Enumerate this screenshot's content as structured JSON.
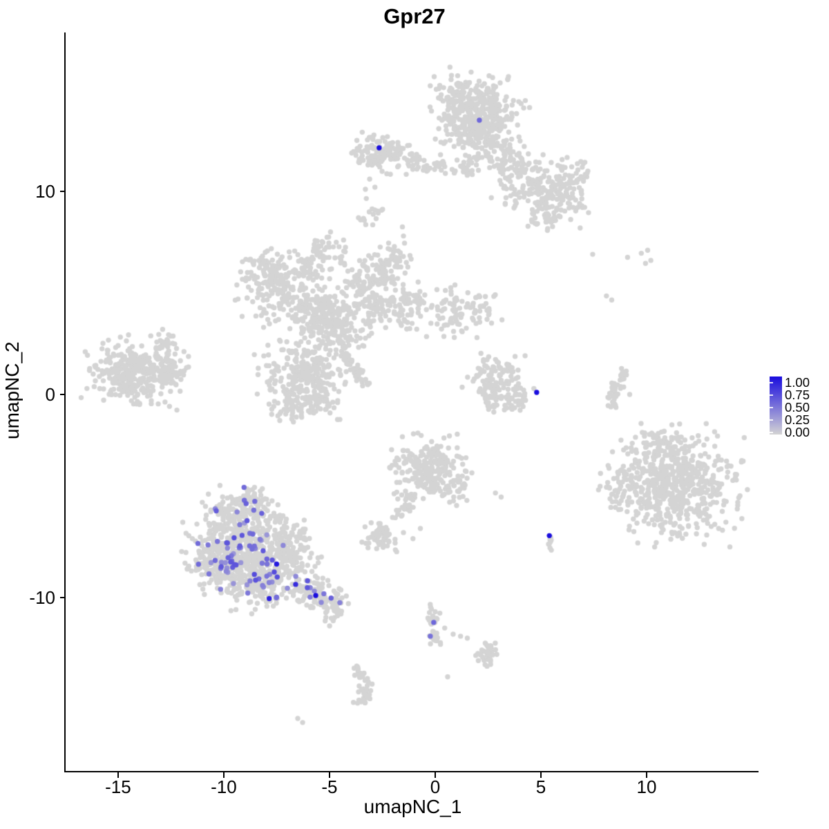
{
  "title": "Gpr27",
  "axes": {
    "x": {
      "label": "umapNC_1",
      "ticks": [
        "-15",
        "-10",
        "-5",
        "0",
        "5",
        "10"
      ],
      "tick_values": [
        -15,
        -10,
        -5,
        0,
        5,
        10
      ]
    },
    "y": {
      "label": "umapNC_2",
      "ticks": [
        "10",
        "0",
        "-10"
      ],
      "tick_values": [
        10,
        0,
        -10
      ]
    }
  },
  "legend": {
    "labels": [
      "1.00",
      "0.75",
      "0.50",
      "0.25",
      "0.00"
    ],
    "low_color": "#D4D4D4",
    "high_color": "#1A0DDE"
  },
  "chart_data": {
    "type": "scatter",
    "title": "Gpr27",
    "xlabel": "umapNC_1",
    "ylabel": "umapNC_2",
    "xlim": [
      -17.48,
      15.36
    ],
    "ylim": [
      -18.57,
      17.82
    ],
    "grid": false,
    "legend_position": "right",
    "point_radius_px": 3.7,
    "colors": {
      "low": "#D4D4D4",
      "high": "#1A0DDE"
    },
    "gray_clusters": [
      {
        "kind": "blob",
        "x": 1.4,
        "y": 14.6,
        "sx": 0.7,
        "sy": 0.6,
        "n": 120
      },
      {
        "kind": "blob",
        "x": 2.6,
        "y": 13.9,
        "sx": 0.8,
        "sy": 0.75,
        "n": 150
      },
      {
        "kind": "blob",
        "x": 1.8,
        "y": 12.9,
        "sx": 0.7,
        "sy": 0.55,
        "n": 100
      },
      {
        "kind": "blob",
        "x": 2.7,
        "y": 12.0,
        "sx": 0.5,
        "sy": 0.5,
        "n": 50
      },
      {
        "kind": "blob",
        "x": 1.6,
        "y": 11.4,
        "sx": 0.45,
        "sy": 0.4,
        "n": 30
      },
      {
        "kind": "blob",
        "x": 0.9,
        "y": 13.6,
        "sx": 0.5,
        "sy": 0.7,
        "n": 60
      },
      {
        "kind": "strand",
        "x1": 3.2,
        "y1": 11.8,
        "x2": 5.0,
        "y2": 10.3,
        "w": 0.5,
        "n": 90
      },
      {
        "kind": "blob",
        "x": 5.7,
        "y": 9.7,
        "sx": 0.75,
        "sy": 0.65,
        "n": 130
      },
      {
        "kind": "blob",
        "x": 6.4,
        "y": 10.7,
        "sx": 0.45,
        "sy": 0.5,
        "n": 45
      },
      {
        "kind": "strand",
        "x1": 4.5,
        "y1": 9.0,
        "x2": 5.7,
        "y2": 8.6,
        "w": 0.3,
        "n": 30
      },
      {
        "kind": "strand",
        "x1": 2.9,
        "y1": 10.5,
        "x2": 4.1,
        "y2": 9.7,
        "w": 0.4,
        "n": 25
      },
      {
        "kind": "blob",
        "x": -2.5,
        "y": 11.9,
        "sx": 0.72,
        "sy": 0.48,
        "n": 130
      },
      {
        "kind": "strand",
        "x1": -1.4,
        "y1": 11.3,
        "x2": 0.5,
        "y2": 11.3,
        "w": 0.22,
        "n": 32
      },
      {
        "kind": "blob",
        "x": -3.0,
        "y": 8.8,
        "sx": 0.3,
        "sy": 0.4,
        "n": 16
      },
      {
        "kind": "blob",
        "x": -7.3,
        "y": 5.3,
        "sx": 0.85,
        "sy": 0.8,
        "n": 190
      },
      {
        "kind": "blob",
        "x": -8.0,
        "y": 6.3,
        "sx": 0.4,
        "sy": 0.4,
        "n": 40
      },
      {
        "kind": "blob",
        "x": -5.2,
        "y": 3.8,
        "sx": 0.95,
        "sy": 0.75,
        "n": 280
      },
      {
        "kind": "strand",
        "x1": -3.8,
        "y1": 5.0,
        "x2": -2.2,
        "y2": 6.3,
        "w": 0.5,
        "n": 110
      },
      {
        "kind": "blob",
        "x": -1.9,
        "y": 6.7,
        "sx": 0.4,
        "sy": 0.4,
        "n": 40
      },
      {
        "kind": "strand",
        "x1": -3.2,
        "y1": 4.2,
        "x2": -0.6,
        "y2": 4.4,
        "w": 0.55,
        "n": 120
      },
      {
        "kind": "blob",
        "x": 1.0,
        "y": 4.0,
        "sx": 0.75,
        "sy": 0.55,
        "n": 90
      },
      {
        "kind": "blob",
        "x": 2.4,
        "y": 4.5,
        "sx": 0.35,
        "sy": 0.35,
        "n": 14
      },
      {
        "kind": "strand",
        "x1": -6.2,
        "y1": 5.9,
        "x2": -5.6,
        "y2": 7.6,
        "w": 0.28,
        "n": 30
      },
      {
        "kind": "blob",
        "x": -5.0,
        "y": 7.0,
        "sx": 0.5,
        "sy": 0.5,
        "n": 32
      },
      {
        "kind": "blob",
        "x": -6.3,
        "y": 0.9,
        "sx": 0.9,
        "sy": 0.85,
        "n": 260
      },
      {
        "kind": "blob",
        "x": -6.9,
        "y": -0.6,
        "sx": 0.5,
        "sy": 0.35,
        "n": 50
      },
      {
        "kind": "blob",
        "x": -5.4,
        "y": -0.4,
        "sx": 0.4,
        "sy": 0.3,
        "n": 40
      },
      {
        "kind": "strand",
        "x1": -4.5,
        "y1": 2.1,
        "x2": -3.2,
        "y2": 0.45,
        "w": 0.12,
        "n": 45
      },
      {
        "kind": "blob",
        "x": -4.5,
        "y": 2.9,
        "sx": 0.5,
        "sy": 0.5,
        "n": 40
      },
      {
        "kind": "blob",
        "x": -14.2,
        "y": 1.1,
        "sx": 1.0,
        "sy": 0.72,
        "n": 320
      },
      {
        "kind": "strand",
        "x1": -13.2,
        "y1": 2.2,
        "x2": -12.5,
        "y2": 3.0,
        "w": 0.25,
        "n": 22
      },
      {
        "kind": "blob",
        "x": -12.55,
        "y": 1.3,
        "sx": 0.42,
        "sy": 0.38,
        "n": 55
      },
      {
        "kind": "blob",
        "x": 3.0,
        "y": 0.6,
        "sx": 0.7,
        "sy": 0.55,
        "n": 95
      },
      {
        "kind": "strand",
        "x1": 2.4,
        "y1": -0.45,
        "x2": 4.3,
        "y2": -0.1,
        "w": 0.28,
        "n": 55
      },
      {
        "kind": "blob",
        "x": 2.6,
        "y": 1.35,
        "sx": 0.3,
        "sy": 0.3,
        "n": 16
      },
      {
        "kind": "strand",
        "x1": 8.42,
        "y1": -0.65,
        "x2": 8.62,
        "y2": 0.35,
        "w": 0.15,
        "n": 22
      },
      {
        "kind": "strand",
        "x1": 8.62,
        "y1": 0.35,
        "x2": 9.0,
        "y2": 1.2,
        "w": 0.15,
        "n": 20
      },
      {
        "kind": "blob",
        "x": 11.4,
        "y": -4.4,
        "sx": 1.35,
        "sy": 1.2,
        "n": 600
      },
      {
        "kind": "blob",
        "x": 8.8,
        "y": -4.6,
        "sx": 0.42,
        "sy": 0.5,
        "n": 45
      },
      {
        "kind": "blob",
        "x": 10.4,
        "y": -2.45,
        "sx": 0.65,
        "sy": 0.4,
        "n": 40
      },
      {
        "kind": "blob",
        "x": -0.3,
        "y": -3.6,
        "sx": 0.85,
        "sy": 0.7,
        "n": 230
      },
      {
        "kind": "strand",
        "x1": -1.2,
        "y1": -4.9,
        "x2": -1.75,
        "y2": -6.25,
        "w": 0.18,
        "n": 26
      },
      {
        "kind": "blob",
        "x": 0.9,
        "y": -4.7,
        "sx": 0.5,
        "sy": 0.4,
        "n": 28
      },
      {
        "kind": "blob",
        "x": -2.55,
        "y": -7.0,
        "sx": 0.4,
        "sy": 0.35,
        "n": 55
      },
      {
        "kind": "blob",
        "x": 5.38,
        "y": -7.3,
        "sx": 0.16,
        "sy": 0.28,
        "n": 10
      },
      {
        "kind": "blob",
        "x": -9.2,
        "y": -5.6,
        "sx": 0.75,
        "sy": 0.45,
        "n": 90
      },
      {
        "kind": "blob",
        "x": -9.3,
        "y": -7.3,
        "sx": 1.05,
        "sy": 0.9,
        "n": 330
      },
      {
        "kind": "blob",
        "x": -10.6,
        "y": -8.3,
        "sx": 0.5,
        "sy": 0.6,
        "n": 90
      },
      {
        "kind": "blob",
        "x": -8.3,
        "y": -9.0,
        "sx": 0.9,
        "sy": 0.7,
        "n": 260
      },
      {
        "kind": "blob",
        "x": -7.0,
        "y": -7.6,
        "sx": 0.7,
        "sy": 0.7,
        "n": 150
      },
      {
        "kind": "strand",
        "x1": -6.3,
        "y1": -9.3,
        "x2": -4.35,
        "y2": -10.7,
        "w": 0.4,
        "n": 110
      },
      {
        "kind": "blob",
        "x": -8.6,
        "y": -4.95,
        "sx": 0.3,
        "sy": 0.28,
        "n": 25
      },
      {
        "kind": "strand",
        "x1": -3.95,
        "y1": -13.4,
        "x2": -3.35,
        "y2": -15.2,
        "w": 0.16,
        "n": 38,
        "curve": 0.25
      },
      {
        "kind": "blob",
        "x": -3.5,
        "y": -14.95,
        "sx": 0.2,
        "sy": 0.2,
        "n": 10
      },
      {
        "kind": "strand",
        "x1": -0.35,
        "y1": -10.35,
        "x2": -0.1,
        "y2": -12.3,
        "w": 0.15,
        "n": 34,
        "curve": 0.2
      },
      {
        "kind": "blob",
        "x": 2.45,
        "y": -12.7,
        "sx": 0.28,
        "sy": 0.28,
        "n": 40
      }
    ],
    "gray_singles": [
      [
        -3.1,
        10.6
      ],
      [
        -2.85,
        10.2
      ],
      [
        -3.3,
        10.1
      ],
      [
        -1.55,
        8.25
      ],
      [
        -1.5,
        7.8
      ],
      [
        -1.45,
        7.45
      ],
      [
        7.45,
        6.9
      ],
      [
        9.1,
        6.75
      ],
      [
        9.75,
        6.95
      ],
      [
        10.05,
        7.1
      ],
      [
        10.2,
        6.6
      ],
      [
        9.95,
        6.45
      ],
      [
        8.1,
        4.85
      ],
      [
        8.35,
        4.65
      ],
      [
        9.2,
        0.0
      ],
      [
        9.3,
        -2.8
      ],
      [
        -1.5,
        -6.8
      ],
      [
        -1.05,
        -7.1
      ],
      [
        -0.7,
        -6.6
      ],
      [
        2.85,
        -4.85
      ],
      [
        3.12,
        -5.05
      ],
      [
        -6.5,
        -15.95
      ],
      [
        -6.27,
        -16.15
      ],
      [
        0.59,
        -13.9
      ],
      [
        0.45,
        -11.5
      ],
      [
        0.85,
        -11.8
      ],
      [
        1.2,
        -11.9
      ],
      [
        1.52,
        -12.0
      ],
      [
        0.25,
        -12.3
      ]
    ],
    "expression_clusters": [
      {
        "kind": "blob",
        "x": -9.3,
        "y": -7.6,
        "sx": 0.95,
        "sy": 0.85,
        "n": 38,
        "vmin": 0.3,
        "vmax": 0.7
      },
      {
        "kind": "blob",
        "x": -8.2,
        "y": -9.0,
        "sx": 0.85,
        "sy": 0.6,
        "n": 22,
        "vmin": 0.3,
        "vmax": 0.7
      },
      {
        "kind": "blob",
        "x": -10.2,
        "y": -8.2,
        "sx": 0.5,
        "sy": 0.55,
        "n": 10,
        "vmin": 0.3,
        "vmax": 0.65
      },
      {
        "kind": "blob",
        "x": -8.9,
        "y": -5.6,
        "sx": 0.6,
        "sy": 0.4,
        "n": 8,
        "vmin": 0.3,
        "vmax": 0.6
      },
      {
        "kind": "strand",
        "x1": -6.2,
        "y1": -9.4,
        "x2": -4.4,
        "y2": -10.6,
        "w": 0.3,
        "n": 9,
        "vmin": 0.35,
        "vmax": 0.65
      }
    ],
    "expression_points": [
      {
        "x": -2.65,
        "y": 12.14,
        "v": 1.0
      },
      {
        "x": 2.09,
        "y": 13.5,
        "v": 0.55
      },
      {
        "x": 4.8,
        "y": 0.1,
        "v": 1.0
      },
      {
        "x": 5.4,
        "y": -6.95,
        "v": 1.0
      },
      {
        "x": -7.5,
        "y": -8.35,
        "v": 0.95
      },
      {
        "x": -5.65,
        "y": -9.9,
        "v": 1.0
      },
      {
        "x": -7.85,
        "y": -10.05,
        "v": 0.9
      },
      {
        "x": -6.6,
        "y": -9.35,
        "v": 0.85
      },
      {
        "x": -0.07,
        "y": -11.22,
        "v": 0.55
      },
      {
        "x": -0.23,
        "y": -11.9,
        "v": 0.5
      }
    ]
  }
}
